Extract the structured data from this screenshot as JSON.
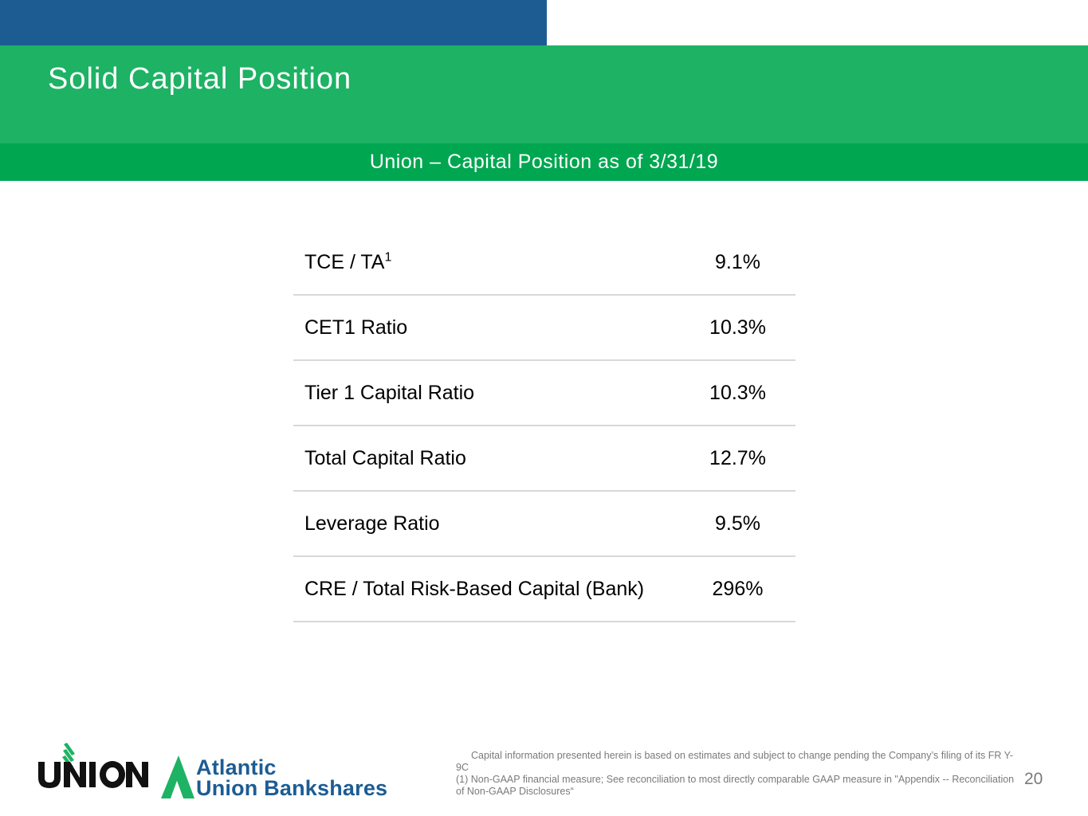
{
  "header": {
    "title": "Solid Capital Position",
    "subtitle": "Union – Capital Position as of 3/31/19"
  },
  "metrics": [
    {
      "label": "TCE / TA",
      "sup": "1",
      "value": "9.1%"
    },
    {
      "label": "CET1 Ratio",
      "value": "10.3%"
    },
    {
      "label": "Tier 1 Capital Ratio",
      "value": "10.3%"
    },
    {
      "label": "Total Capital Ratio",
      "value": "12.7%"
    },
    {
      "label": "Leverage Ratio",
      "value": "9.5%"
    },
    {
      "label": "CRE / Total Risk-Based Capital (Bank)",
      "value": "296%"
    }
  ],
  "footer": {
    "logo_union_text": "UNION",
    "logo_atlantic_line1": "Atlantic",
    "logo_atlantic_line2": "Union Bankshares",
    "footnote_1": "Capital information presented herein is based on estimates and subject to change pending the Company’s filing of its FR Y-9C",
    "footnote_2": "(1) Non-GAAP financial measure; See reconciliation to most directly comparable GAAP measure in \"Appendix -- Reconciliation of Non-GAAP Disclosures“",
    "page_number": "20"
  },
  "colors": {
    "top_bar": "#1c5c93",
    "title_band": "#1db264",
    "sub_band": "#00a650",
    "logo_blue": "#1c5c93",
    "logo_green": "#1db264"
  }
}
